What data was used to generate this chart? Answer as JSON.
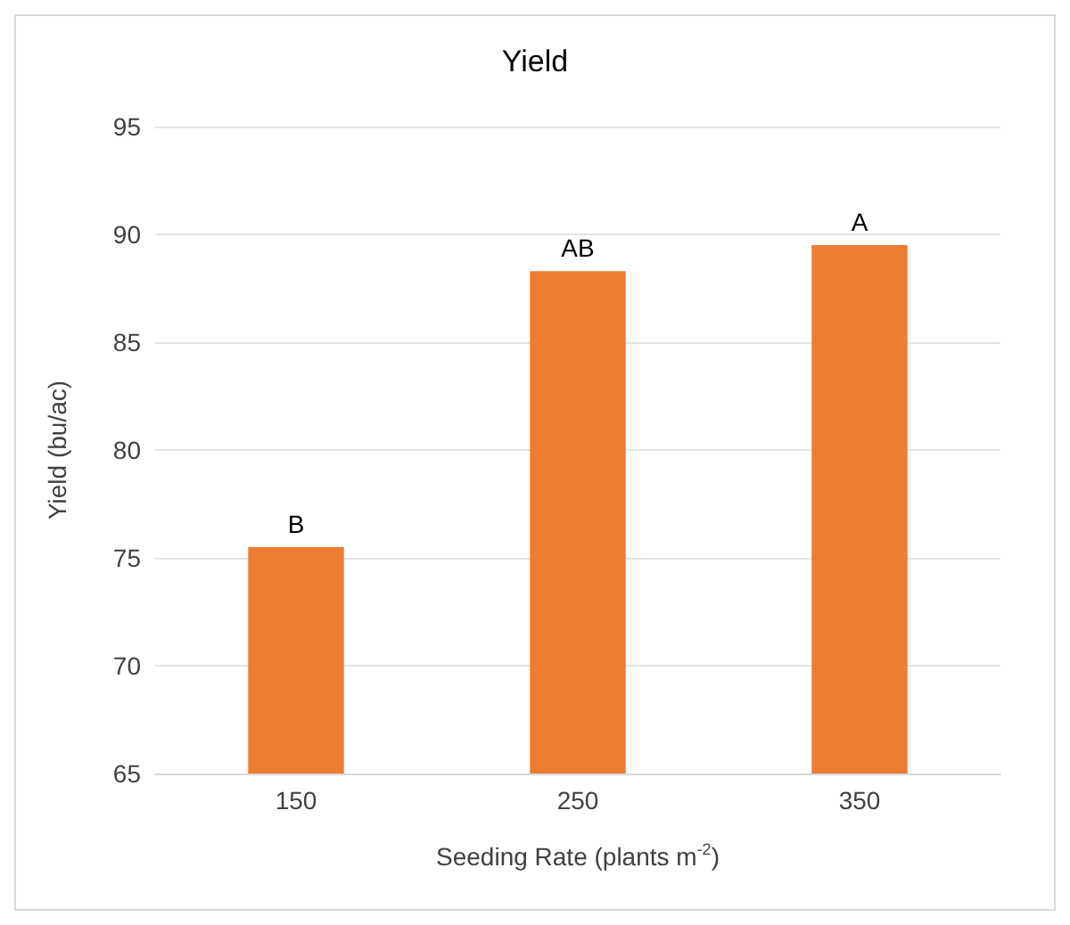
{
  "chart_data": {
    "type": "bar",
    "title": "Yield",
    "xlabel": "Seeding Rate (plants m$^{-2}$)",
    "ylabel": "Yield (bu/ac)",
    "categories": [
      "150",
      "250",
      "350"
    ],
    "series": [
      {
        "color": "#ed7d31",
        "values": [
          75.5,
          88.3,
          89.5
        ]
      }
    ],
    "ylim": [
      65,
      95
    ],
    "yticks": [
      65,
      70,
      75,
      80,
      85,
      90,
      95
    ],
    "grid": "y",
    "annotations": [
      {
        "text": "B",
        "x": "150",
        "y": 75.5
      },
      {
        "text": "AB",
        "x": "250",
        "y": 88.3
      },
      {
        "text": "A",
        "x": "350",
        "y": 89.5
      }
    ]
  }
}
